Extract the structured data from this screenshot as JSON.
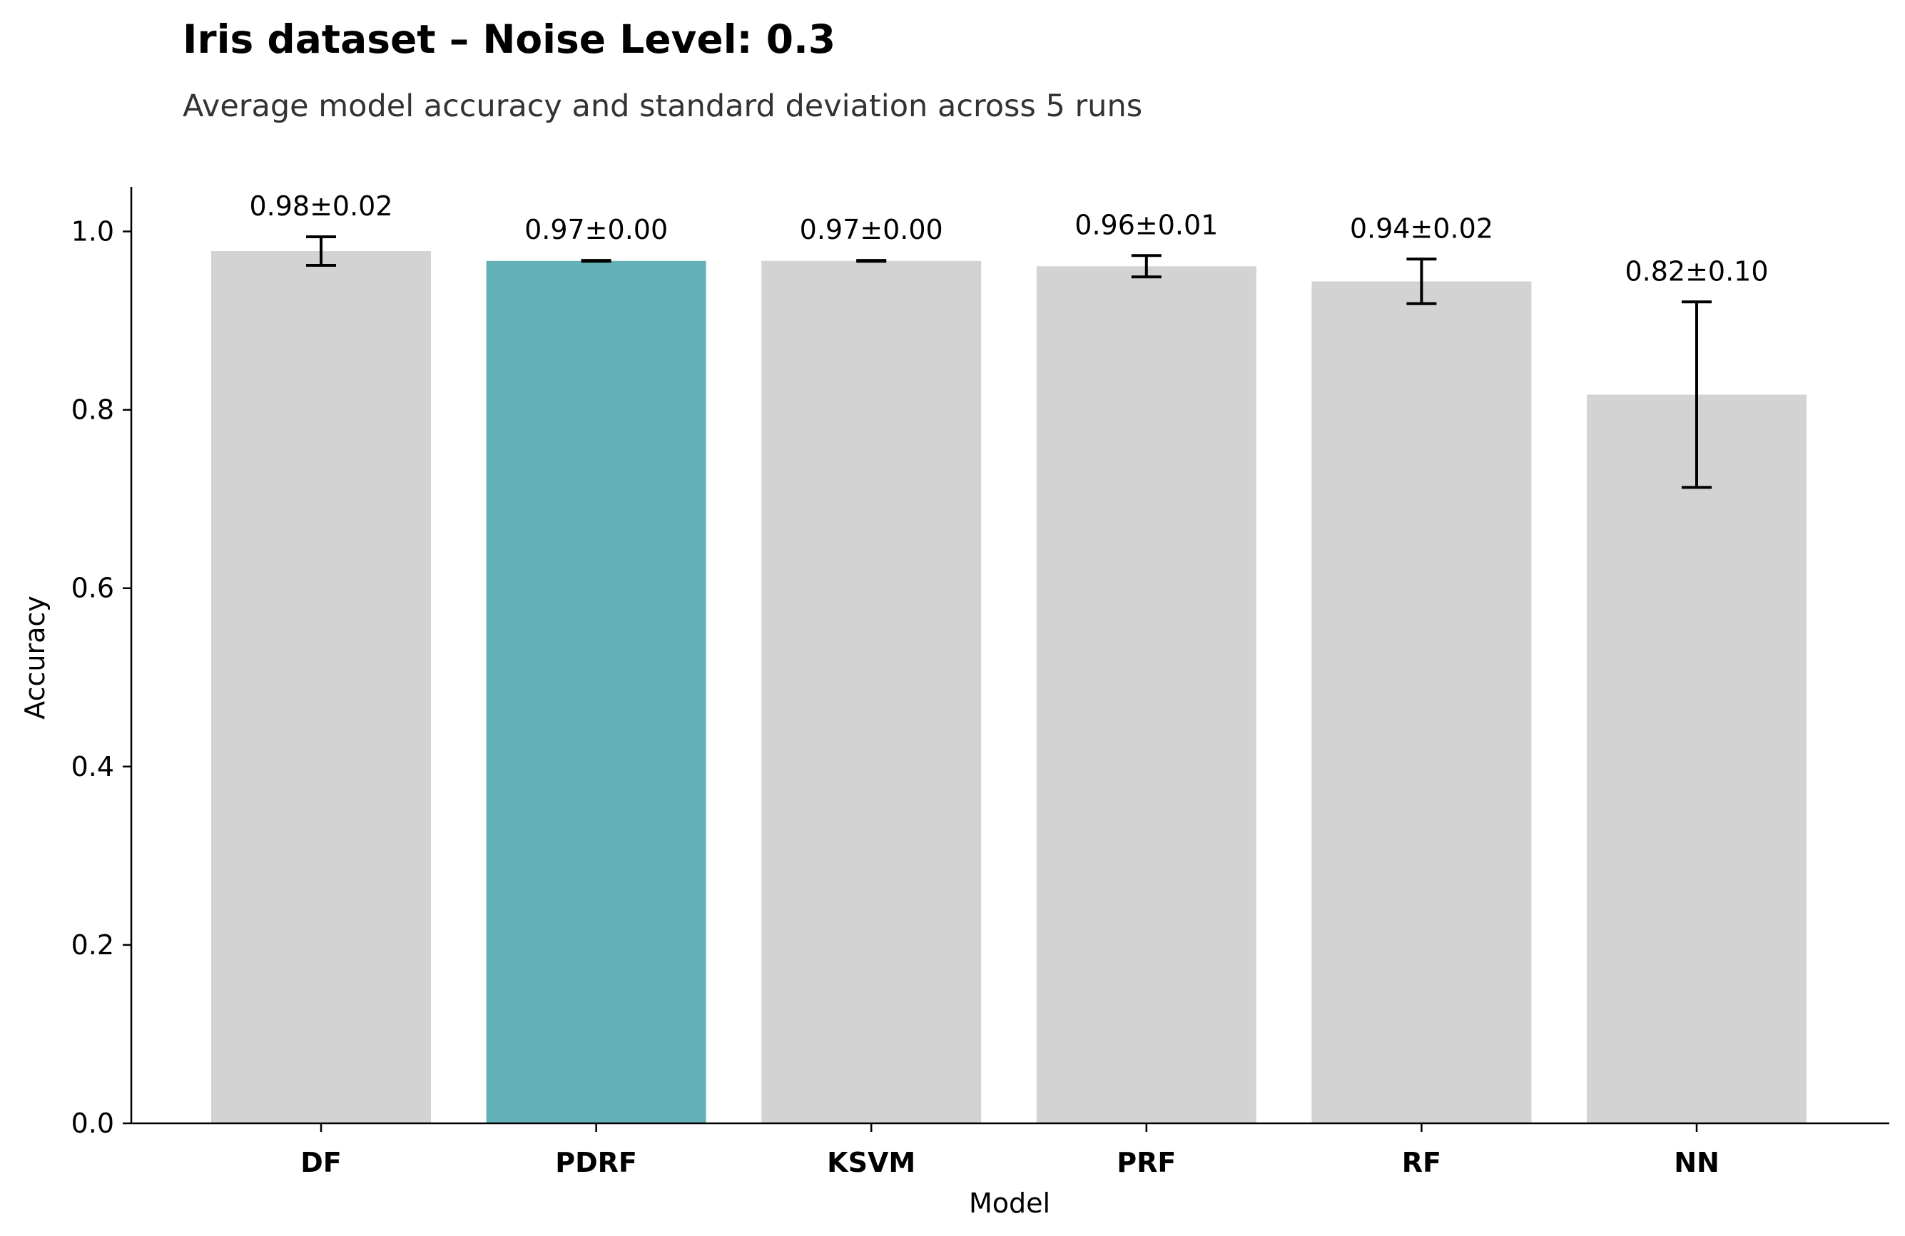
{
  "chart_data": {
    "type": "bar",
    "title": "Iris dataset – Noise Level: 0.3",
    "subtitle": "Average model accuracy and standard deviation across 5 runs",
    "xlabel": "Model",
    "ylabel": "Accuracy",
    "categories": [
      "DF",
      "PDRF",
      "KSVM",
      "PRF",
      "RF",
      "NN"
    ],
    "values": [
      0.978,
      0.967,
      0.967,
      0.961,
      0.944,
      0.817
    ],
    "errors": [
      0.016,
      0.0005,
      0.0005,
      0.012,
      0.025,
      0.104
    ],
    "data_labels": [
      "0.98±0.02",
      "0.97±0.00",
      "0.97±0.00",
      "0.96±0.01",
      "0.94±0.02",
      "0.82±0.10"
    ],
    "highlight_index": 1,
    "ylim": [
      0.0,
      1.05
    ],
    "yticks": [
      0.0,
      0.2,
      0.4,
      0.6,
      0.8,
      1.0
    ],
    "ytick_labels": [
      "0.0",
      "0.2",
      "0.4",
      "0.6",
      "0.8",
      "1.0"
    ],
    "grid": false,
    "colors": {
      "bar": "#d3d3d3",
      "highlight": "#64b2b7",
      "error_bar": "#000000",
      "axis": "#000000"
    }
  }
}
